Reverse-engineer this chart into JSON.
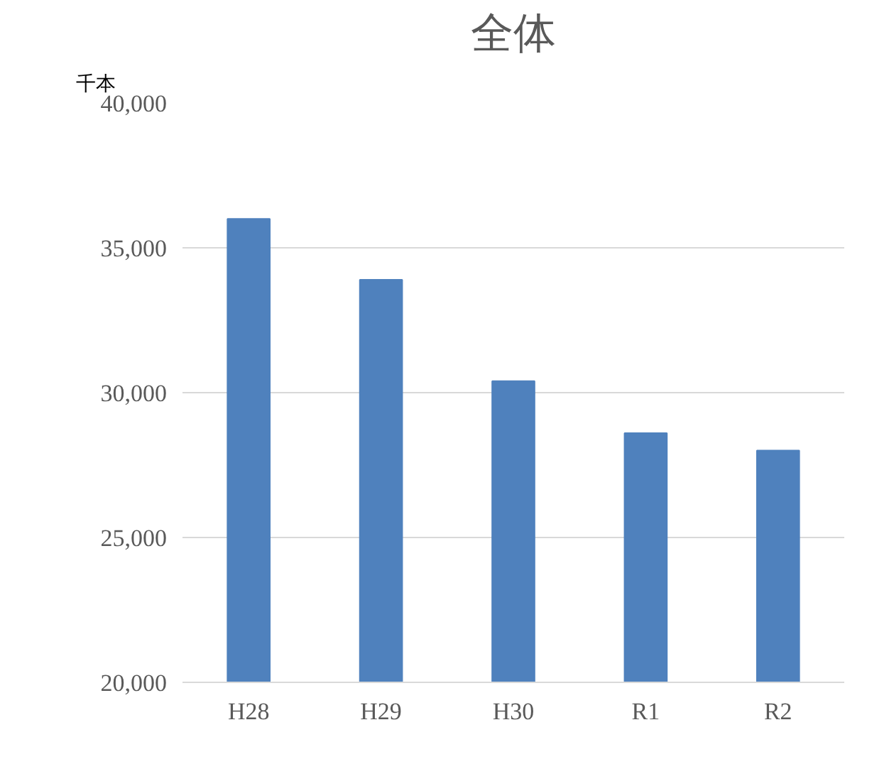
{
  "chart_data": {
    "type": "bar",
    "title": "全体",
    "ylabel": "千本",
    "categories": [
      "H28",
      "H29",
      "H30",
      "R1",
      "R2"
    ],
    "values": [
      36000,
      33900,
      30400,
      28600,
      28000
    ],
    "color": "#4f81bd",
    "ylim": [
      20000,
      40000
    ],
    "yticks": [
      {
        "value": 20000,
        "label": "20,000"
      },
      {
        "value": 25000,
        "label": "25,000"
      },
      {
        "value": 30000,
        "label": "30,000"
      },
      {
        "value": 35000,
        "label": "35,000"
      },
      {
        "value": 40000,
        "label": "40,000"
      }
    ],
    "grid": "y"
  }
}
